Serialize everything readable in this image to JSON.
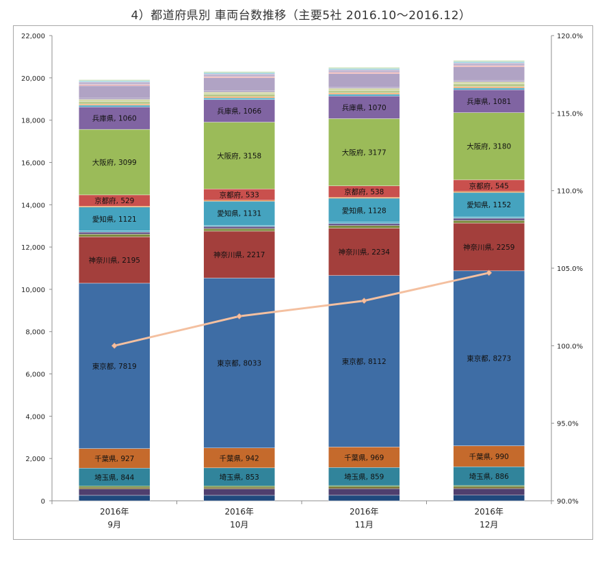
{
  "title": "4）都道府県別 車両台数推移（主要5社 2016.10～2016.12）",
  "chart_data": {
    "type": "bar",
    "stacked": true,
    "categories": [
      [
        "2016年",
        "9月"
      ],
      [
        "2016年",
        "10月"
      ],
      [
        "2016年",
        "11月"
      ],
      [
        "2016年",
        "12月"
      ]
    ],
    "ylim": [
      0,
      22000
    ],
    "yticks": [
      "0",
      "2,000",
      "4,000",
      "6,000",
      "8,000",
      "10,000",
      "12,000",
      "14,000",
      "16,000",
      "18,000",
      "20,000",
      "22,000"
    ],
    "y2lim": [
      90,
      120
    ],
    "y2ticks": [
      "90.0%",
      "95.0%",
      "100.0%",
      "105.0%",
      "110.0%",
      "115.0%",
      "120.0%"
    ],
    "grid": false,
    "series": [
      {
        "values": [
          260,
          260,
          262,
          265
        ],
        "color": "#1f497d"
      },
      {
        "values": [
          300,
          305,
          310,
          315
        ],
        "color": "#4f3f6e"
      },
      {
        "values": [
          80,
          80,
          82,
          83
        ],
        "color": "#7a6a2c"
      },
      {
        "values": [
          60,
          60,
          62,
          63
        ],
        "color": "#5e8c3a"
      },
      {
        "name": "埼玉県",
        "values": [
          844,
          853,
          859,
          886
        ],
        "color": "#31849b"
      },
      {
        "name": "千葉県",
        "values": [
          927,
          942,
          969,
          990
        ],
        "color": "#c56a2c"
      },
      {
        "name": "東京都",
        "values": [
          7819,
          8033,
          8112,
          8273
        ],
        "color": "#3e6da5"
      },
      {
        "name": "神奈川県",
        "values": [
          2195,
          2217,
          2234,
          2259
        ],
        "color": "#a33f3c"
      },
      {
        "values": [
          120,
          122,
          123,
          125
        ],
        "color": "#7c8a3e"
      },
      {
        "values": [
          100,
          100,
          102,
          104
        ],
        "color": "#6a5889"
      },
      {
        "values": [
          60,
          60,
          61,
          62
        ],
        "color": "#4bacc6"
      },
      {
        "name": "愛知県",
        "values": [
          1121,
          1131,
          1128,
          1152
        ],
        "color": "#45a3bf"
      },
      {
        "values": [
          50,
          52,
          52,
          55
        ],
        "color": "#e0863a"
      },
      {
        "name": "京都府",
        "values": [
          529,
          533,
          538,
          545
        ],
        "color": "#c9504d"
      },
      {
        "name": "大阪府",
        "values": [
          3099,
          3158,
          3177,
          3180
        ],
        "color": "#9bbb59"
      },
      {
        "name": "兵庫県",
        "values": [
          1060,
          1066,
          1070,
          1081
        ],
        "color": "#8064a2"
      },
      {
        "values": [
          80,
          80,
          82,
          85
        ],
        "color": "#4bacc6"
      },
      {
        "values": [
          60,
          60,
          62,
          64
        ],
        "color": "#f3a05c"
      },
      {
        "values": [
          120,
          120,
          122,
          125
        ],
        "color": "#b7c98d"
      },
      {
        "values": [
          100,
          100,
          102,
          104
        ],
        "color": "#d3d8a6"
      },
      {
        "values": [
          50,
          52,
          52,
          53
        ],
        "color": "#9a8ab5"
      },
      {
        "values": [
          600,
          620,
          640,
          650
        ],
        "color": "#b0a3c4"
      },
      {
        "values": [
          50,
          55,
          55,
          58
        ],
        "color": "#e8a0a0"
      },
      {
        "values": [
          120,
          125,
          125,
          128
        ],
        "color": "#c0b4d0"
      },
      {
        "values": [
          60,
          62,
          63,
          64
        ],
        "color": "#92cddc"
      },
      {
        "values": [
          50,
          52,
          53,
          54
        ],
        "color": "#c6e0b4"
      }
    ],
    "line": {
      "axis": "right",
      "values": [
        100.0,
        101.9,
        102.9,
        104.7
      ],
      "color": "#f4c0a0"
    }
  }
}
